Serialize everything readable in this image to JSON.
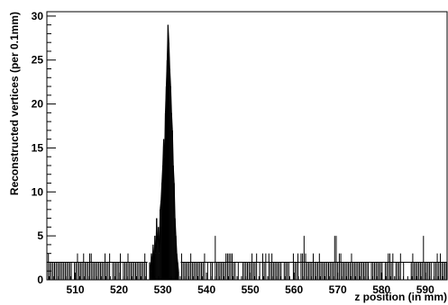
{
  "chart_data": {
    "type": "histogram",
    "title": "",
    "xlabel": "z position (in mm)",
    "ylabel": "Reconstructed vertices (per 0.1mm)",
    "xlim": [
      503.5,
      595
    ],
    "ylim": [
      0,
      30.5
    ],
    "x_ticks": [
      510,
      520,
      530,
      540,
      550,
      560,
      570,
      580,
      590
    ],
    "x_tick_labels": [
      "510",
      "520",
      "530",
      "540",
      "550",
      "560",
      "570",
      "580",
      "590"
    ],
    "y_ticks": [
      0,
      5,
      10,
      15,
      20,
      25,
      30
    ],
    "y_tick_labels": [
      "0",
      "5",
      "10",
      "15",
      "20",
      "25",
      "30"
    ],
    "bin_width": 0.1,
    "grid": false,
    "peak": {
      "bins_x": [
        527.0,
        527.2,
        527.4,
        527.6,
        527.8,
        528.0,
        528.2,
        528.4,
        528.6,
        528.8,
        529.0,
        529.2,
        529.4,
        529.6,
        529.8,
        530.0,
        530.2,
        530.4,
        530.6,
        530.8,
        531.0,
        531.2,
        531.4,
        531.6,
        531.8,
        532.0,
        532.2,
        532.4,
        532.6,
        532.8,
        533.0,
        533.2,
        533.4,
        533.6
      ],
      "values": [
        2,
        1,
        3,
        2,
        4,
        2,
        5,
        3,
        7,
        4,
        6,
        3,
        8,
        9,
        11,
        13,
        16,
        14,
        19,
        22,
        25,
        29,
        27,
        24,
        22,
        19,
        17,
        13,
        11,
        7,
        5,
        3,
        2,
        1
      ]
    },
    "background": {
      "range": [
        503.5,
        595
      ],
      "typical_value": 2,
      "spike_value": 3,
      "occasional_max": 5
    }
  }
}
